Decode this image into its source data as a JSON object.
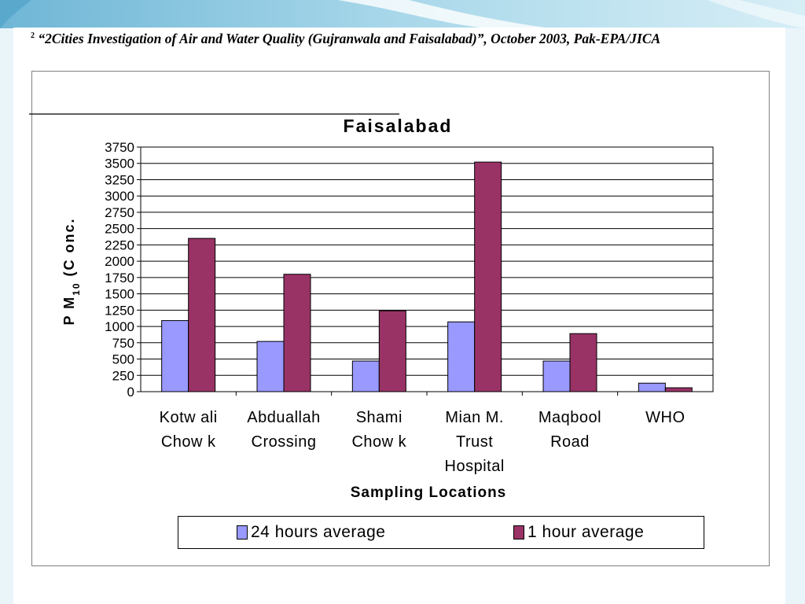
{
  "citation": {
    "footnote_mark": "2",
    "text": "“2Cities Investigation of Air and Water Quality (Gujranwala and Faisalabad)”, October 2003, Pak-EPA/JICA"
  },
  "colors": {
    "series_24h": "#9999FF",
    "series_1h": "#993366",
    "gridline": "#000000"
  },
  "chart_data": {
    "type": "bar",
    "title": "Faisalabad",
    "xlabel": "Sampling Locations",
    "ylabel": {
      "main": "P M",
      "subscript": "10",
      "rest": " (C onc."
    },
    "ylim": [
      0,
      3750
    ],
    "yticks": [
      0,
      250,
      500,
      750,
      1000,
      1250,
      1500,
      1750,
      2000,
      2250,
      2500,
      2750,
      3000,
      3250,
      3500,
      3750
    ],
    "grid": true,
    "legend_position": "bottom",
    "categories": [
      [
        "Kotw ali",
        "Chow k"
      ],
      [
        "Abduallah",
        "Crossing"
      ],
      [
        "Shami",
        "Chow k"
      ],
      [
        "Mian M.",
        "Trust",
        "Hospital"
      ],
      [
        "Maqbool",
        "Road"
      ],
      [
        "WHO"
      ]
    ],
    "series": [
      {
        "name": "24 hours average",
        "values": [
          1090,
          770,
          470,
          1070,
          470,
          130
        ]
      },
      {
        "name": "1 hour average",
        "values": [
          2350,
          1800,
          1240,
          3520,
          890,
          60
        ]
      }
    ]
  }
}
